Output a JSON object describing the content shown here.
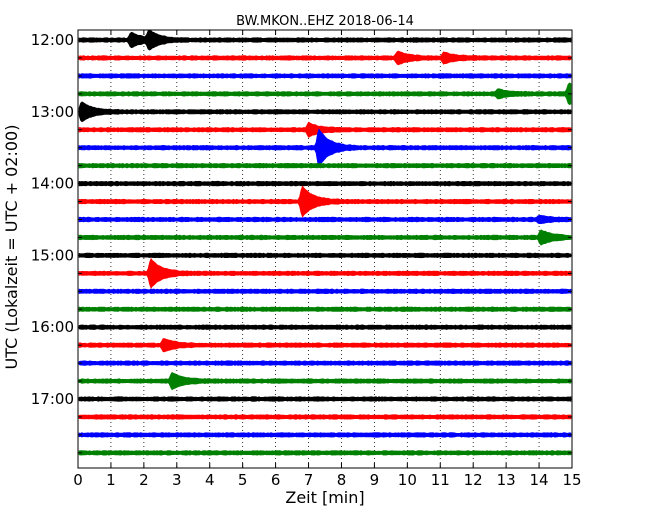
{
  "chart_data": {
    "type": "line",
    "title": "BW.MKON..EHZ 2018-06-14",
    "xlabel": "Zeit  [min]",
    "ylabel": "UTC (Lokalzeit = UTC + 02:00)",
    "xlim": [
      0,
      15
    ],
    "x_ticks": [
      0,
      1,
      2,
      3,
      4,
      5,
      6,
      7,
      8,
      9,
      10,
      11,
      12,
      13,
      14,
      15
    ],
    "x_tick_labels": [
      "0",
      "1",
      "2",
      "3",
      "4",
      "5",
      "6",
      "7",
      "8",
      "9",
      "10",
      "11",
      "12",
      "13",
      "14",
      "15"
    ],
    "y_tick_labels": [
      "12:00",
      "13:00",
      "14:00",
      "15:00",
      "16:00",
      "17:00"
    ],
    "grid": "dotted vertical lines at each minute",
    "trace_colors": [
      "#000000",
      "#ff0000",
      "#0000ff",
      "#008000"
    ],
    "traces": [
      {
        "start": "12:00",
        "color": "#000000",
        "events": [
          {
            "min": 1.6,
            "amp": 0.35
          },
          {
            "min": 2.15,
            "amp": 0.45
          }
        ]
      },
      {
        "start": "12:15",
        "color": "#ff0000",
        "events": [
          {
            "min": 9.7,
            "amp": 0.3
          },
          {
            "min": 11.1,
            "amp": 0.25
          }
        ]
      },
      {
        "start": "12:30",
        "color": "#0000ff",
        "events": []
      },
      {
        "start": "12:45",
        "color": "#008000",
        "events": [
          {
            "min": 12.75,
            "amp": 0.2
          },
          {
            "min": 14.9,
            "amp": 0.55
          }
        ]
      },
      {
        "start": "13:00",
        "color": "#000000",
        "events": [
          {
            "min": 0.1,
            "amp": 0.5
          }
        ]
      },
      {
        "start": "13:15",
        "color": "#ff0000",
        "events": [
          {
            "min": 7.0,
            "amp": 0.3
          }
        ]
      },
      {
        "start": "13:30",
        "color": "#0000ff",
        "events": [
          {
            "min": 7.3,
            "amp": 1.0
          }
        ]
      },
      {
        "start": "13:45",
        "color": "#008000",
        "events": []
      },
      {
        "start": "14:00",
        "color": "#000000",
        "events": []
      },
      {
        "start": "14:15",
        "color": "#ff0000",
        "events": [
          {
            "min": 6.8,
            "amp": 0.8
          }
        ]
      },
      {
        "start": "14:30",
        "color": "#0000ff",
        "events": [
          {
            "min": 14.0,
            "amp": 0.15
          }
        ]
      },
      {
        "start": "14:45",
        "color": "#008000",
        "events": [
          {
            "min": 14.05,
            "amp": 0.35
          }
        ]
      },
      {
        "start": "15:00",
        "color": "#000000",
        "events": []
      },
      {
        "start": "15:15",
        "color": "#ff0000",
        "events": [
          {
            "min": 2.2,
            "amp": 0.75
          }
        ]
      },
      {
        "start": "15:30",
        "color": "#0000ff",
        "events": []
      },
      {
        "start": "15:45",
        "color": "#008000",
        "events": []
      },
      {
        "start": "16:00",
        "color": "#000000",
        "events": []
      },
      {
        "start": "16:15",
        "color": "#ff0000",
        "events": [
          {
            "min": 2.6,
            "amp": 0.3
          }
        ]
      },
      {
        "start": "16:30",
        "color": "#0000ff",
        "events": []
      },
      {
        "start": "16:45",
        "color": "#008000",
        "events": [
          {
            "min": 2.85,
            "amp": 0.4
          }
        ]
      },
      {
        "start": "17:00",
        "color": "#000000",
        "events": []
      },
      {
        "start": "17:15",
        "color": "#ff0000",
        "events": []
      },
      {
        "start": "17:30",
        "color": "#0000ff",
        "events": []
      },
      {
        "start": "17:45",
        "color": "#008000",
        "events": []
      }
    ]
  }
}
